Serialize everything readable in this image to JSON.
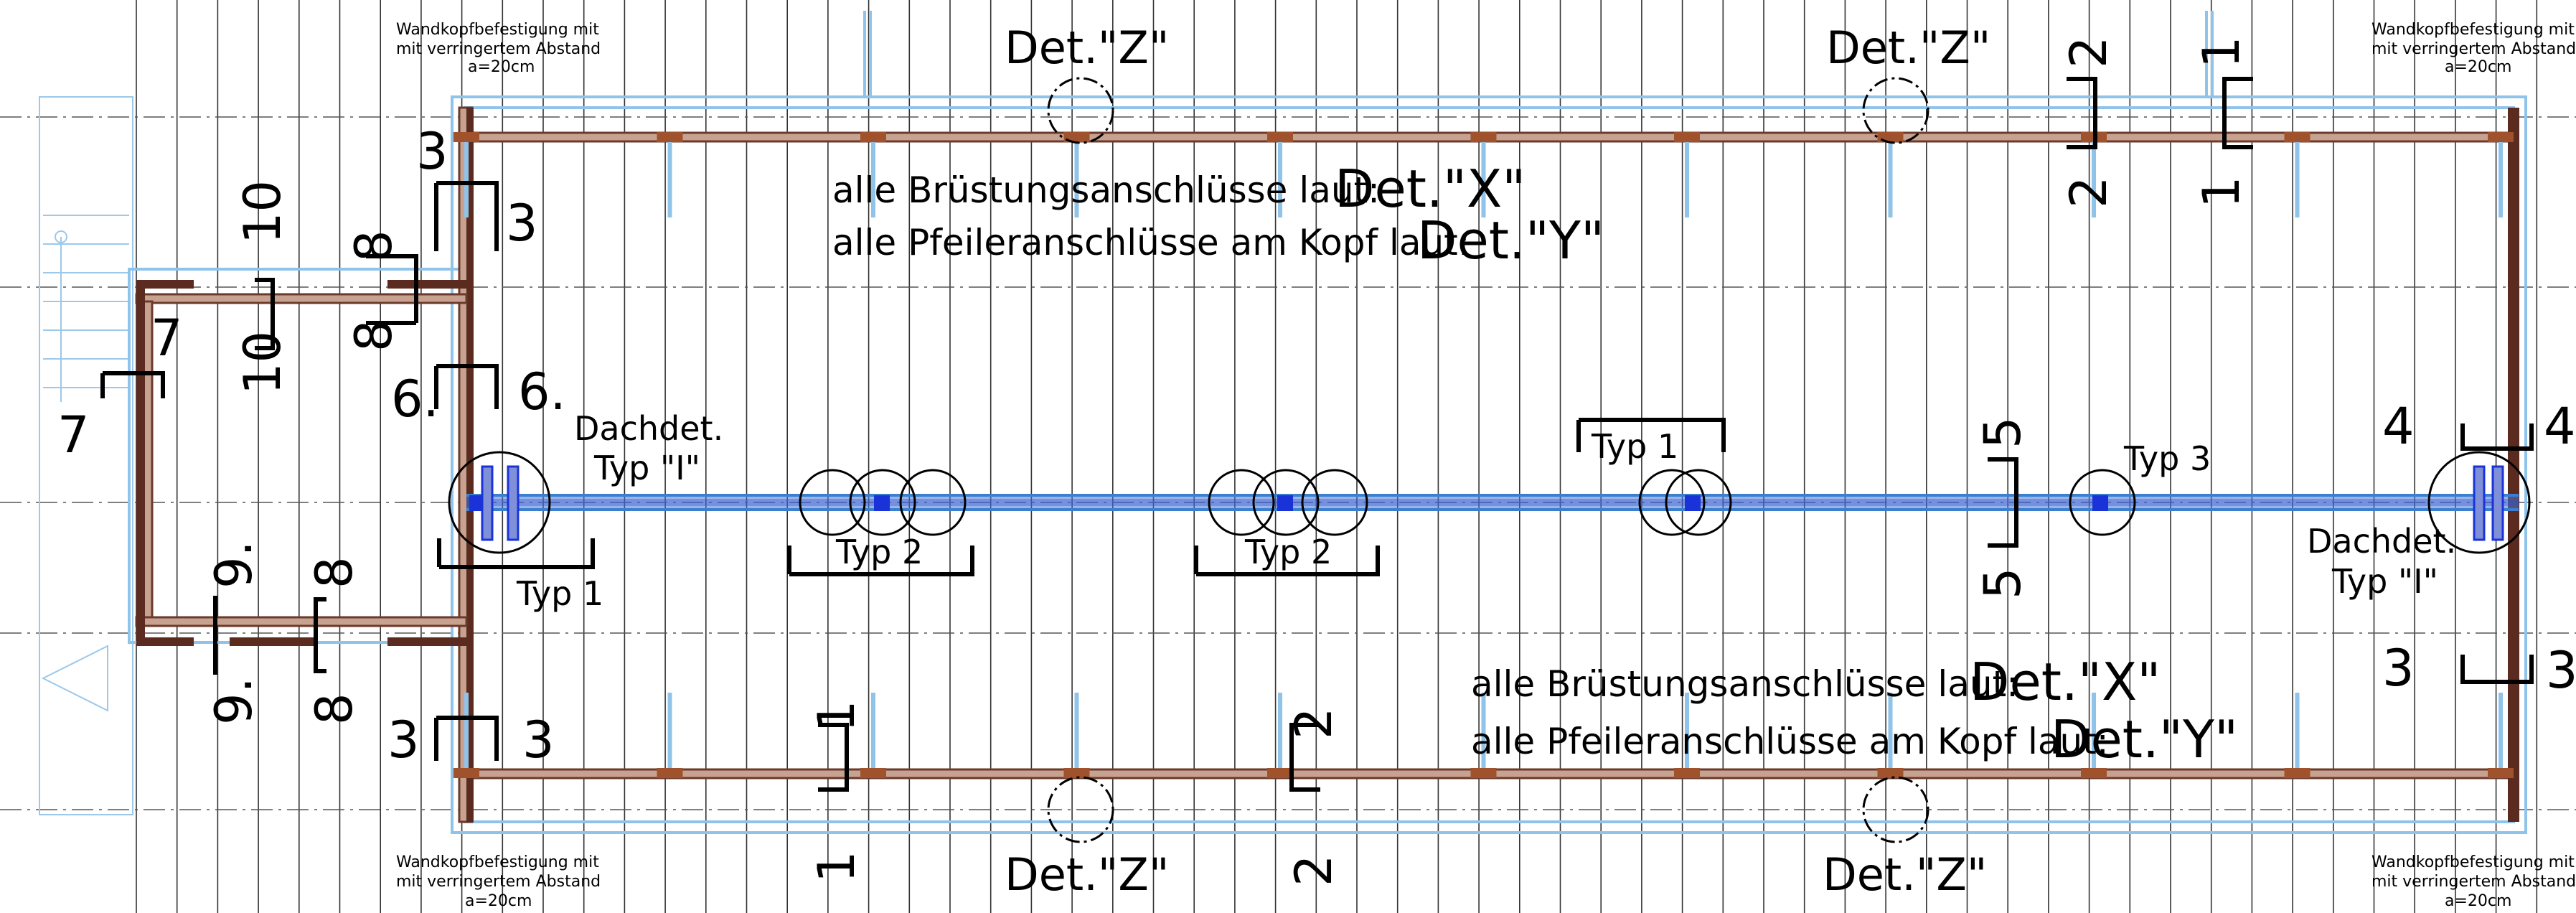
{
  "plan": {
    "detail_top_left": "Det.\"Z\"",
    "detail_top_right": "Det.\"Z\"",
    "detail_bottom_left": "Det.\"Z\"",
    "detail_bottom_right": "Det.\"Z\"",
    "note_top_1_prefix": "alle Brüstungsanschlüsse laut:",
    "note_top_1_ref": "Det.\"X\"",
    "note_top_2_prefix": "alle Pfeileranschlüsse am Kopf laut:",
    "note_top_2_ref": "Det.\"Y\"",
    "note_bottom_1_prefix": "alle Brüstungsanschlüsse laut:",
    "note_bottom_1_ref": "Det.\"X\"",
    "note_bottom_2_prefix": "alle Pfeileranschlüsse am Kopf laut:",
    "note_bottom_2_ref": "Det.\"Y\"",
    "wall_head_line1": "Wandkopfbefestigung mit",
    "wall_head_line2": "mit verringertem Abstand",
    "wall_head_line3": "a=20cm",
    "dachdet": "Dachdet.",
    "typ_i": "Typ \"I\"",
    "typ1": "Typ 1",
    "typ2": "Typ 2",
    "typ3": "Typ 3",
    "s1": "1",
    "s2": "2",
    "s3": "3",
    "s4": "4",
    "s5": "5",
    "s6": "6.",
    "s7": "7",
    "s8": "8",
    "s9": "9.",
    "s10": "10"
  }
}
